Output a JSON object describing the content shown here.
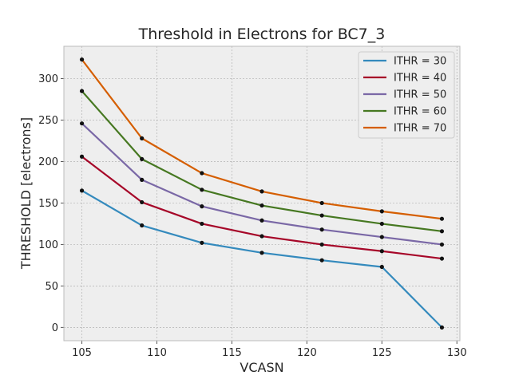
{
  "chart_data": {
    "type": "line",
    "title": "Threshold in Electrons for BC7_3",
    "xlabel": "VCASN",
    "ylabel": "THRESHOLD [electrons]",
    "xlim": [
      103.8,
      130.2
    ],
    "ylim": [
      -16,
      339
    ],
    "xticks": [
      105,
      110,
      115,
      120,
      125,
      130
    ],
    "yticks": [
      0,
      50,
      100,
      150,
      200,
      250,
      300
    ],
    "grid": true,
    "legend_position": "top-right",
    "x": [
      105,
      109,
      113,
      117,
      121,
      125,
      129
    ],
    "series": [
      {
        "name": "ITHR = 30",
        "color": "#348ABD",
        "values": [
          165,
          123,
          102,
          90,
          81,
          73,
          0
        ]
      },
      {
        "name": "ITHR = 40",
        "color": "#A60628",
        "values": [
          206,
          151,
          125,
          110,
          100,
          92,
          83
        ]
      },
      {
        "name": "ITHR = 50",
        "color": "#7A68A6",
        "values": [
          246,
          178,
          146,
          129,
          118,
          109,
          100
        ]
      },
      {
        "name": "ITHR = 60",
        "color": "#467821",
        "values": [
          285,
          203,
          166,
          147,
          135,
          125,
          116
        ]
      },
      {
        "name": "ITHR = 70",
        "color": "#D55E00",
        "values": [
          323,
          228,
          186,
          164,
          150,
          140,
          131
        ]
      }
    ]
  }
}
